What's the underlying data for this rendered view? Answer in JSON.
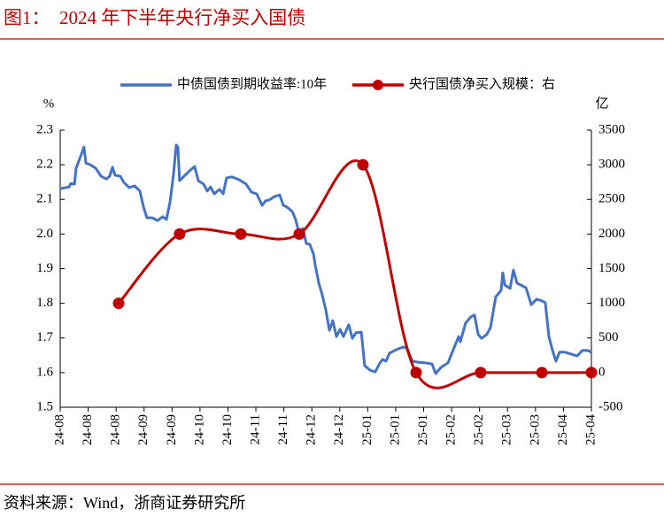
{
  "chart_data": {
    "type": "line",
    "title": "图1：  2024 年下半年央行净买入国债",
    "source": "资料来源：Wind，浙商证券研究所",
    "ylabel": "%",
    "y2label": "亿",
    "xlim": [
      0,
      19
    ],
    "xticks": [
      {
        "value": 0,
        "label": "24-08"
      },
      {
        "value": 1,
        "label": "24-08"
      },
      {
        "value": 2,
        "label": "24-08"
      },
      {
        "value": 3,
        "label": "24-09"
      },
      {
        "value": 4,
        "label": "24-09"
      },
      {
        "value": 5,
        "label": "24-10"
      },
      {
        "value": 6,
        "label": "24-10"
      },
      {
        "value": 7,
        "label": "24-11"
      },
      {
        "value": 8,
        "label": "24-11"
      },
      {
        "value": 9,
        "label": "24-12"
      },
      {
        "value": 10,
        "label": "24-12"
      },
      {
        "value": 11,
        "label": "25-01"
      },
      {
        "value": 12,
        "label": "25-01"
      },
      {
        "value": 13,
        "label": "25-01"
      },
      {
        "value": 14,
        "label": "25-02"
      },
      {
        "value": 15,
        "label": "25-02"
      },
      {
        "value": 16,
        "label": "25-03"
      },
      {
        "value": 17,
        "label": "25-03"
      },
      {
        "value": 18,
        "label": "25-04"
      },
      {
        "value": 19,
        "label": "25-04"
      }
    ],
    "ylim": [
      1.5,
      2.3
    ],
    "yticks": [
      {
        "value": 1.5,
        "label": "1.5"
      },
      1.6,
      1.7,
      1.8,
      1.9,
      {
        "value": 2.0,
        "label": "2.0"
      },
      2.1,
      2.2,
      2.3
    ],
    "y2lim": [
      -500,
      3500
    ],
    "y2ticks": [
      -500,
      0,
      500,
      1000,
      1500,
      2000,
      2500,
      3000,
      3500
    ],
    "grid": false,
    "series": [
      {
        "name": "中债国债到期收益率:10年",
        "color": "#4472c4",
        "axis": "y",
        "x": [
          0,
          0.32,
          0.38,
          0.51,
          0.57,
          0.76,
          0.85,
          0.92,
          1.08,
          1.27,
          1.46,
          1.65,
          1.77,
          1.87,
          1.96,
          2.15,
          2.28,
          2.47,
          2.66,
          2.85,
          2.98,
          3.1,
          3.29,
          3.48,
          3.67,
          3.8,
          3.93,
          4.05,
          4.15,
          4.21,
          4.27,
          4.43,
          4.62,
          4.81,
          4.94,
          5.13,
          5.26,
          5.38,
          5.51,
          5.7,
          5.83,
          5.95,
          6.14,
          6.4,
          6.65,
          6.84,
          7.03,
          7.22,
          7.35,
          7.47,
          7.66,
          7.85,
          7.98,
          8.11,
          8.3,
          8.42,
          8.55,
          8.68,
          8.8,
          8.93,
          9.06,
          9.12,
          9.25,
          9.37,
          9.5,
          9.63,
          9.75,
          9.88,
          10.01,
          10.13,
          10.32,
          10.45,
          10.58,
          10.77,
          10.89,
          11.08,
          11.27,
          11.4,
          11.53,
          11.65,
          11.78,
          11.97,
          12.1,
          12.29,
          12.41,
          12.6,
          12.79,
          13.05,
          13.3,
          13.43,
          13.62,
          13.87,
          14.06,
          14.25,
          14.31,
          14.5,
          14.69,
          14.82,
          14.95,
          15.07,
          15.26,
          15.39,
          15.58,
          15.77,
          15.83,
          15.9,
          16.09,
          16.21,
          16.34,
          16.47,
          16.66,
          16.85,
          17.04,
          17.23,
          17.35,
          17.48,
          17.61,
          17.73,
          17.86,
          18.05,
          18.3,
          18.49,
          18.68,
          18.87,
          19
        ],
        "values": [
          2.131,
          2.136,
          2.146,
          2.144,
          2.19,
          2.231,
          2.251,
          2.205,
          2.2,
          2.19,
          2.167,
          2.159,
          2.167,
          2.193,
          2.17,
          2.167,
          2.149,
          2.134,
          2.139,
          2.124,
          2.078,
          2.047,
          2.047,
          2.039,
          2.05,
          2.042,
          2.093,
          2.17,
          2.257,
          2.251,
          2.154,
          2.167,
          2.182,
          2.195,
          2.154,
          2.144,
          2.124,
          2.136,
          2.116,
          2.129,
          2.116,
          2.162,
          2.165,
          2.157,
          2.144,
          2.121,
          2.116,
          2.083,
          2.096,
          2.098,
          2.108,
          2.113,
          2.083,
          2.078,
          2.065,
          2.042,
          2.001,
          2.016,
          1.973,
          1.97,
          1.942,
          1.911,
          1.858,
          1.825,
          1.781,
          1.722,
          1.75,
          1.704,
          1.725,
          1.704,
          1.738,
          1.699,
          1.715,
          1.717,
          1.62,
          1.607,
          1.602,
          1.623,
          1.638,
          1.633,
          1.656,
          1.664,
          1.669,
          1.674,
          1.669,
          1.633,
          1.63,
          1.628,
          1.625,
          1.597,
          1.615,
          1.628,
          1.666,
          1.704,
          1.689,
          1.743,
          1.761,
          1.766,
          1.71,
          1.699,
          1.71,
          1.73,
          1.819,
          1.837,
          1.888,
          1.853,
          1.843,
          1.896,
          1.858,
          1.853,
          1.845,
          1.796,
          1.812,
          1.807,
          1.802,
          1.704,
          1.664,
          1.633,
          1.659,
          1.659,
          1.653,
          1.648,
          1.664,
          1.664,
          1.659
        ]
      },
      {
        "name": "央行国债净买入规模：右",
        "color": "#c00000",
        "axis": "y2",
        "markers": true,
        "smooth": true,
        "x": [
          2.09,
          4.27,
          6.46,
          8.55,
          10.83,
          12.73,
          15.04,
          17.23,
          19
        ],
        "values": [
          1000,
          2000,
          2000,
          2000,
          3000,
          0,
          0,
          0,
          0
        ]
      }
    ]
  }
}
